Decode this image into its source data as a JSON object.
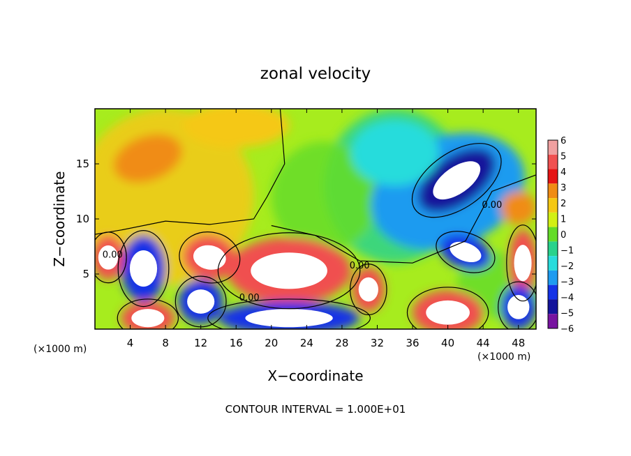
{
  "chart_data": {
    "type": "heatmap",
    "title": "zonal velocity",
    "xlabel": "X−coordinate",
    "ylabel": "Z−coordinate",
    "x_unit_label": "(×1000 m)",
    "y_unit_label": "(×1000 m)",
    "xlim": [
      0,
      50
    ],
    "ylim": [
      0,
      20
    ],
    "xticks": [
      4,
      8,
      12,
      16,
      20,
      24,
      28,
      32,
      36,
      40,
      44,
      48
    ],
    "yticks": [
      5,
      10,
      15
    ],
    "footer": "CONTOUR INTERVAL = 1.000E+01",
    "contour_labels": [
      {
        "text": "0.00",
        "x": 17.5,
        "y": 2.6
      },
      {
        "text": "0.00",
        "x": 30.0,
        "y": 5.5
      },
      {
        "text": "0.00",
        "x": 45.0,
        "y": 11.0
      },
      {
        "text": "0.00",
        "x": 2.0,
        "y": 6.5
      }
    ],
    "colorbar": {
      "levels": [
        6,
        5,
        4,
        3,
        2,
        1,
        0,
        -1,
        -2,
        -3,
        -4,
        -5,
        -6
      ],
      "colors": [
        "#f0a0a0",
        "#f05050",
        "#e51414",
        "#f08c14",
        "#f5c814",
        "#d2f014",
        "#64dc28",
        "#28d28c",
        "#28dcdc",
        "#1e9bf0",
        "#1432e6",
        "#14149b",
        "#7814a0"
      ]
    },
    "regions": [
      {
        "type": "ellipse",
        "cx": 40,
        "cy": 12.5,
        "rx": 9,
        "ry": 5,
        "rot": -20,
        "value": -3.5
      },
      {
        "type": "ellipse",
        "cx": 41,
        "cy": 13.5,
        "rx": 5,
        "ry": 2.2,
        "rot": -35,
        "value": -5.5
      },
      {
        "type": "ellipse",
        "cx": 42,
        "cy": 7,
        "rx": 3,
        "ry": 1.5,
        "rot": 20,
        "value": -4.5
      },
      {
        "type": "ellipse",
        "cx": 34,
        "cy": 16,
        "rx": 5,
        "ry": 3,
        "rot": 0,
        "value": -2.0
      },
      {
        "type": "ellipse",
        "cx": 6,
        "cy": 15.5,
        "rx": 4,
        "ry": 2,
        "rot": -20,
        "value": 3.0
      },
      {
        "type": "ellipse",
        "cx": 16,
        "cy": 18.5,
        "rx": 6,
        "ry": 2,
        "rot": 0,
        "value": 2.0
      },
      {
        "type": "ellipse",
        "cx": 48,
        "cy": 11,
        "rx": 2,
        "ry": 1.5,
        "rot": 0,
        "value": 3.0
      },
      {
        "type": "ellipse",
        "cx": 22,
        "cy": 5.3,
        "rx": 7,
        "ry": 3,
        "rot": 0,
        "value": 5.0
      },
      {
        "type": "ellipse",
        "cx": 13,
        "cy": 6.5,
        "rx": 3,
        "ry": 2,
        "rot": 10,
        "value": 5.0
      },
      {
        "type": "ellipse",
        "cx": 5.5,
        "cy": 5.5,
        "rx": 2.5,
        "ry": 3,
        "rot": 0,
        "value": -4.5
      },
      {
        "type": "ellipse",
        "cx": 1.5,
        "cy": 6.5,
        "rx": 1.8,
        "ry": 2,
        "rot": 0,
        "value": 5.0
      },
      {
        "type": "ellipse",
        "cx": 12,
        "cy": 2.5,
        "rx": 2.5,
        "ry": 2,
        "rot": 0,
        "value": -4.5
      },
      {
        "type": "ellipse",
        "cx": 6,
        "cy": 1.0,
        "rx": 3,
        "ry": 1.5,
        "rot": 0,
        "value": 5.0
      },
      {
        "type": "ellipse",
        "cx": 22,
        "cy": 1.0,
        "rx": 8,
        "ry": 1.5,
        "rot": 0,
        "value": -4.5
      },
      {
        "type": "ellipse",
        "cx": 31,
        "cy": 3.6,
        "rx": 1.8,
        "ry": 2,
        "rot": 0,
        "value": 5.0
      },
      {
        "type": "ellipse",
        "cx": 40,
        "cy": 1.5,
        "rx": 4,
        "ry": 2,
        "rot": 0,
        "value": 5.0
      },
      {
        "type": "ellipse",
        "cx": 48.5,
        "cy": 6,
        "rx": 1.6,
        "ry": 3,
        "rot": 0,
        "value": 5.0
      },
      {
        "type": "ellipse",
        "cx": 48,
        "cy": 2,
        "rx": 2,
        "ry": 2,
        "rot": 0,
        "value": -4.5
      }
    ]
  }
}
